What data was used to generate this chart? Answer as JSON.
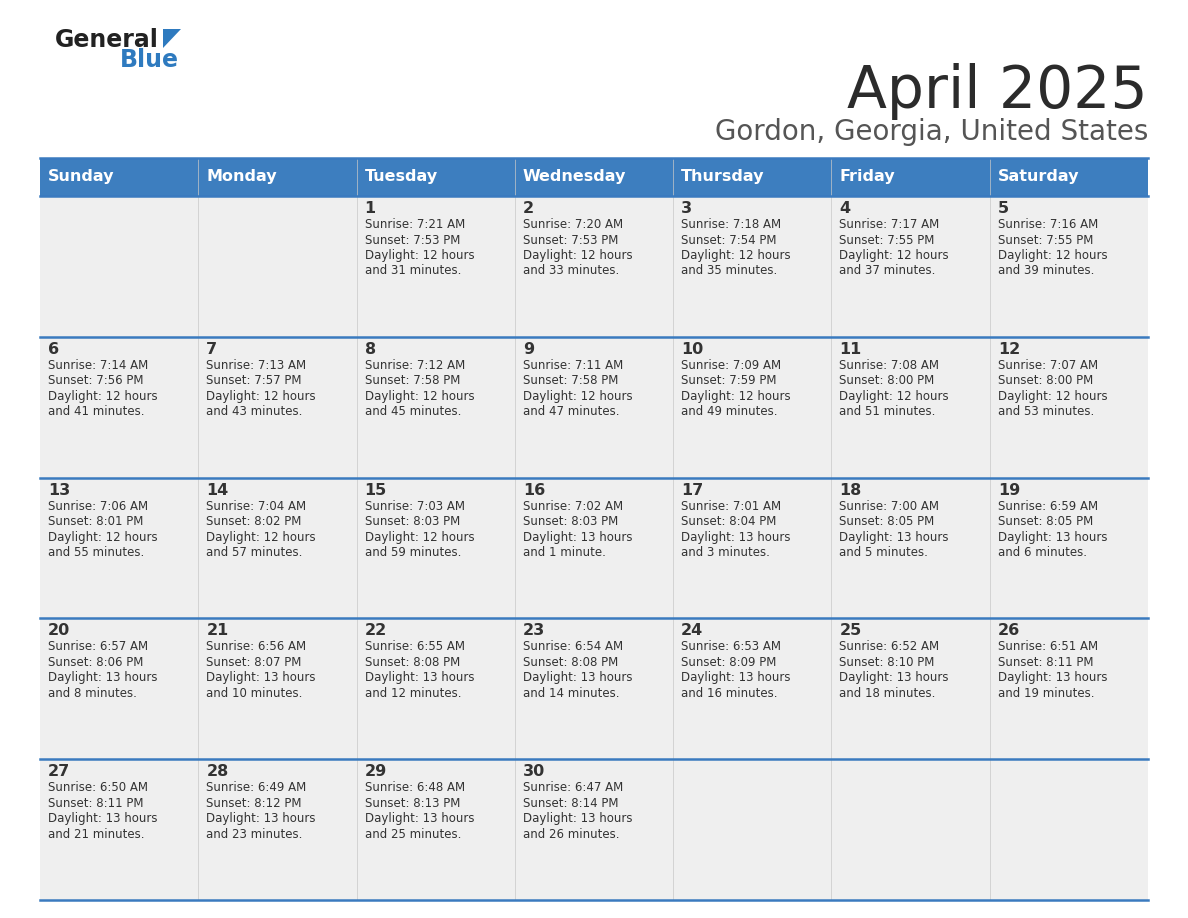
{
  "title": "April 2025",
  "subtitle": "Gordon, Georgia, United States",
  "header_bg_color": "#3d7ebf",
  "header_text_color": "#ffffff",
  "cell_bg_color": "#efefef",
  "border_color": "#3a7abf",
  "text_color": "#333333",
  "days_of_week": [
    "Sunday",
    "Monday",
    "Tuesday",
    "Wednesday",
    "Thursday",
    "Friday",
    "Saturday"
  ],
  "weeks": [
    [
      {
        "day": "",
        "info": ""
      },
      {
        "day": "",
        "info": ""
      },
      {
        "day": "1",
        "info": "Sunrise: 7:21 AM\nSunset: 7:53 PM\nDaylight: 12 hours\nand 31 minutes."
      },
      {
        "day": "2",
        "info": "Sunrise: 7:20 AM\nSunset: 7:53 PM\nDaylight: 12 hours\nand 33 minutes."
      },
      {
        "day": "3",
        "info": "Sunrise: 7:18 AM\nSunset: 7:54 PM\nDaylight: 12 hours\nand 35 minutes."
      },
      {
        "day": "4",
        "info": "Sunrise: 7:17 AM\nSunset: 7:55 PM\nDaylight: 12 hours\nand 37 minutes."
      },
      {
        "day": "5",
        "info": "Sunrise: 7:16 AM\nSunset: 7:55 PM\nDaylight: 12 hours\nand 39 minutes."
      }
    ],
    [
      {
        "day": "6",
        "info": "Sunrise: 7:14 AM\nSunset: 7:56 PM\nDaylight: 12 hours\nand 41 minutes."
      },
      {
        "day": "7",
        "info": "Sunrise: 7:13 AM\nSunset: 7:57 PM\nDaylight: 12 hours\nand 43 minutes."
      },
      {
        "day": "8",
        "info": "Sunrise: 7:12 AM\nSunset: 7:58 PM\nDaylight: 12 hours\nand 45 minutes."
      },
      {
        "day": "9",
        "info": "Sunrise: 7:11 AM\nSunset: 7:58 PM\nDaylight: 12 hours\nand 47 minutes."
      },
      {
        "day": "10",
        "info": "Sunrise: 7:09 AM\nSunset: 7:59 PM\nDaylight: 12 hours\nand 49 minutes."
      },
      {
        "day": "11",
        "info": "Sunrise: 7:08 AM\nSunset: 8:00 PM\nDaylight: 12 hours\nand 51 minutes."
      },
      {
        "day": "12",
        "info": "Sunrise: 7:07 AM\nSunset: 8:00 PM\nDaylight: 12 hours\nand 53 minutes."
      }
    ],
    [
      {
        "day": "13",
        "info": "Sunrise: 7:06 AM\nSunset: 8:01 PM\nDaylight: 12 hours\nand 55 minutes."
      },
      {
        "day": "14",
        "info": "Sunrise: 7:04 AM\nSunset: 8:02 PM\nDaylight: 12 hours\nand 57 minutes."
      },
      {
        "day": "15",
        "info": "Sunrise: 7:03 AM\nSunset: 8:03 PM\nDaylight: 12 hours\nand 59 minutes."
      },
      {
        "day": "16",
        "info": "Sunrise: 7:02 AM\nSunset: 8:03 PM\nDaylight: 13 hours\nand 1 minute."
      },
      {
        "day": "17",
        "info": "Sunrise: 7:01 AM\nSunset: 8:04 PM\nDaylight: 13 hours\nand 3 minutes."
      },
      {
        "day": "18",
        "info": "Sunrise: 7:00 AM\nSunset: 8:05 PM\nDaylight: 13 hours\nand 5 minutes."
      },
      {
        "day": "19",
        "info": "Sunrise: 6:59 AM\nSunset: 8:05 PM\nDaylight: 13 hours\nand 6 minutes."
      }
    ],
    [
      {
        "day": "20",
        "info": "Sunrise: 6:57 AM\nSunset: 8:06 PM\nDaylight: 13 hours\nand 8 minutes."
      },
      {
        "day": "21",
        "info": "Sunrise: 6:56 AM\nSunset: 8:07 PM\nDaylight: 13 hours\nand 10 minutes."
      },
      {
        "day": "22",
        "info": "Sunrise: 6:55 AM\nSunset: 8:08 PM\nDaylight: 13 hours\nand 12 minutes."
      },
      {
        "day": "23",
        "info": "Sunrise: 6:54 AM\nSunset: 8:08 PM\nDaylight: 13 hours\nand 14 minutes."
      },
      {
        "day": "24",
        "info": "Sunrise: 6:53 AM\nSunset: 8:09 PM\nDaylight: 13 hours\nand 16 minutes."
      },
      {
        "day": "25",
        "info": "Sunrise: 6:52 AM\nSunset: 8:10 PM\nDaylight: 13 hours\nand 18 minutes."
      },
      {
        "day": "26",
        "info": "Sunrise: 6:51 AM\nSunset: 8:11 PM\nDaylight: 13 hours\nand 19 minutes."
      }
    ],
    [
      {
        "day": "27",
        "info": "Sunrise: 6:50 AM\nSunset: 8:11 PM\nDaylight: 13 hours\nand 21 minutes."
      },
      {
        "day": "28",
        "info": "Sunrise: 6:49 AM\nSunset: 8:12 PM\nDaylight: 13 hours\nand 23 minutes."
      },
      {
        "day": "29",
        "info": "Sunrise: 6:48 AM\nSunset: 8:13 PM\nDaylight: 13 hours\nand 25 minutes."
      },
      {
        "day": "30",
        "info": "Sunrise: 6:47 AM\nSunset: 8:14 PM\nDaylight: 13 hours\nand 26 minutes."
      },
      {
        "day": "",
        "info": ""
      },
      {
        "day": "",
        "info": ""
      },
      {
        "day": "",
        "info": ""
      }
    ]
  ],
  "logo_general_color": "#222222",
  "logo_blue_color": "#2e7abf",
  "logo_triangle_color": "#2e7abf"
}
